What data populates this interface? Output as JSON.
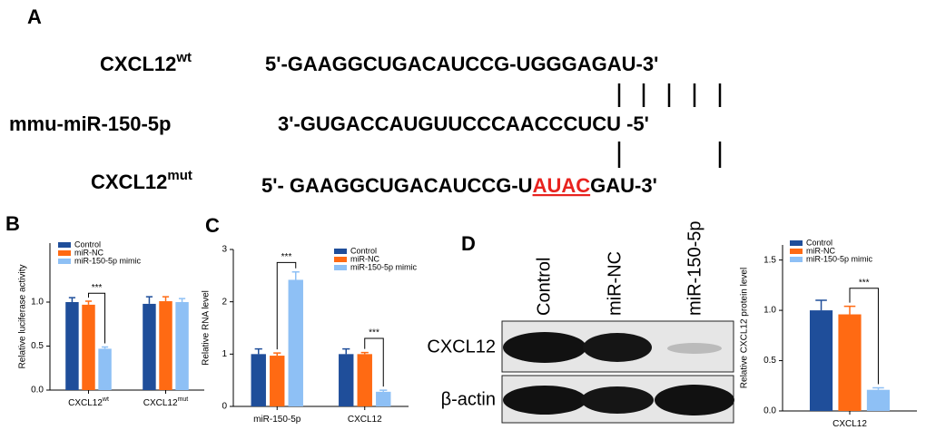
{
  "panel_labels": [
    "A",
    "B",
    "C",
    "D"
  ],
  "sequence": {
    "wt_label": "CXCL12",
    "wt_sup": "wt",
    "wt_seq": "5'-GAAGGCUGACAUCCG-UGGGAGAU-3'",
    "mir_label": "mmu-miR-150-5p",
    "mir_seq": "3'-GUGACCAUGUUCCCAACCCUCU -5'",
    "mut_label": "CXCL12",
    "mut_sup": "mut",
    "mut_seq": [
      "5'- GAAGGCUGACAUCCG-U",
      "AUAC",
      "GAU-3'"
    ]
  },
  "blot": {
    "lanes": [
      "Control",
      "miR-NC",
      "miR-150-5p"
    ],
    "bands": [
      "CXCL12",
      "β-actin"
    ]
  },
  "chart_data": [
    {
      "type": "bar",
      "y_label": "Relative luciferase activity",
      "categories": [
        "CXCL12",
        "CXCL12"
      ],
      "category_superscripts": [
        "wt",
        "mut"
      ],
      "ylim": [
        0,
        1.67
      ],
      "yticks": [
        {
          "value": 0,
          "label": "0.0"
        },
        {
          "value": 0.5,
          "label": "0.5"
        },
        {
          "value": 1,
          "label": "1.0"
        }
      ],
      "series": [
        {
          "name": "Control",
          "color": "#1f4e9a",
          "values": [
            1.0,
            0.98
          ],
          "errors": [
            0.05,
            0.08
          ]
        },
        {
          "name": "miR-NC",
          "color": "#ff6a13",
          "values": [
            0.97,
            1.01
          ],
          "errors": [
            0.04,
            0.05
          ]
        },
        {
          "name": "miR-150-5p mimic",
          "color": "#8ec0f5",
          "values": [
            0.47,
            1.0
          ],
          "errors": [
            0.02,
            0.04
          ]
        }
      ],
      "annotations": [
        "***"
      ]
    },
    {
      "type": "bar",
      "y_label": "Relative RNA level",
      "categories": [
        "miR-150-5p",
        "CXCL12"
      ],
      "ylim": [
        0,
        3
      ],
      "yticks": [
        0,
        1,
        2,
        3
      ],
      "series": [
        {
          "name": "Control",
          "color": "#1f4e9a",
          "values": [
            1.0,
            1.0
          ],
          "errors": [
            0.1,
            0.1
          ]
        },
        {
          "name": "miR-NC",
          "color": "#ff6a13",
          "values": [
            0.97,
            1.0
          ],
          "errors": [
            0.05,
            0.03
          ]
        },
        {
          "name": "miR-150-5p mimic",
          "color": "#8ec0f5",
          "values": [
            2.42,
            0.28
          ],
          "errors": [
            0.15,
            0.03
          ]
        }
      ],
      "annotations": [
        "***",
        "***"
      ]
    },
    {
      "type": "bar",
      "y_label": "Relative CXCL12 protein level",
      "categories": [
        "CXCL12"
      ],
      "ylim": [
        0,
        1.65
      ],
      "yticks": [
        {
          "value": 0,
          "label": "0.0"
        },
        {
          "value": 0.5,
          "label": "0.5"
        },
        {
          "value": 1,
          "label": "1.0"
        },
        {
          "value": 1.5,
          "label": "1.5"
        }
      ],
      "series": [
        {
          "name": "Control",
          "color": "#1f4e9a",
          "values": [
            1.0
          ],
          "errors": [
            0.1
          ]
        },
        {
          "name": "miR-NC",
          "color": "#ff6a13",
          "values": [
            0.96
          ],
          "errors": [
            0.08
          ]
        },
        {
          "name": "miR-150-5p mimic",
          "color": "#8ec0f5",
          "values": [
            0.21
          ],
          "errors": [
            0.02
          ]
        }
      ],
      "annotations": [
        "***"
      ]
    }
  ]
}
